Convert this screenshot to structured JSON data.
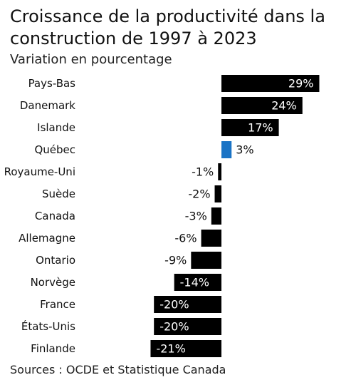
{
  "header": {
    "title": "Croissance de la productivité dans la construction de 1997 à 2023",
    "subtitle": "Variation en pourcentage"
  },
  "footer": {
    "source": "Sources : OCDE et Statistique Canada"
  },
  "colors": {
    "default_bar": "#000000",
    "highlight_bar": "#1a73c5",
    "bar_label_on_dark": "#ffffff",
    "bar_label_outside": "#111111"
  },
  "chart_data": {
    "type": "bar",
    "orientation": "horizontal",
    "title": "Croissance de la productivité dans la construction de 1997 à 2023",
    "subtitle": "Variation en pourcentage",
    "unit": "%",
    "categories": [
      "Pays-Bas",
      "Danemark",
      "Islande",
      "Québec",
      "Royaume-Uni",
      "Suède",
      "Canada",
      "Allemagne",
      "Ontario",
      "Norvège",
      "France",
      "États-Unis",
      "Finlande"
    ],
    "values": [
      29,
      24,
      17,
      3,
      -1,
      -2,
      -3,
      -6,
      -9,
      -14,
      -20,
      -20,
      -21
    ],
    "data_labels": [
      "29%",
      "24%",
      "17%",
      "3%",
      "-1%",
      "-2%",
      "-3%",
      "-6%",
      "-9%",
      "-14%",
      "-20%",
      "-20%",
      "-21%"
    ],
    "highlight": "Québec",
    "xlim": [
      -21,
      29
    ],
    "grid": false,
    "legend": "none"
  }
}
